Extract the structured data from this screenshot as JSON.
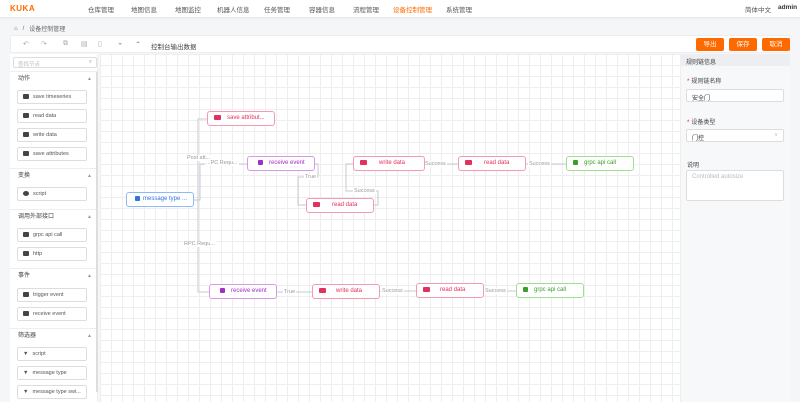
{
  "nav": {
    "logo": "KUKA",
    "items": [
      "仓库管理",
      "地图信息",
      "地图监控",
      "机器人信息",
      "任务管理",
      "容器信息",
      "流程管理",
      "设备控制管理",
      "系统管理"
    ],
    "active_index": 7,
    "language": "简体中文",
    "user": "admin",
    "accent": "#ff6a00"
  },
  "breadcrumb": {
    "home_icon": "home-icon",
    "current": "设备控制管理"
  },
  "toolbar": {
    "icons": [
      "undo-icon",
      "redo-icon",
      "copy-icon",
      "paste-icon",
      "delete-icon",
      "eye-icon",
      "preview-icon"
    ],
    "text": "控制台输出数据",
    "export": "导出",
    "save": "保存",
    "cancel": "取消"
  },
  "sidebar": {
    "search_placeholder": "查找节点",
    "sections": [
      {
        "title": "动作",
        "items": [
          "save timeseries",
          "read data",
          "write data",
          "save attributes"
        ]
      },
      {
        "title": "变换",
        "items": [
          "script"
        ]
      },
      {
        "title": "调用外部接口",
        "items": [
          "grpc api call",
          "http"
        ]
      },
      {
        "title": "事件",
        "items": [
          "trigger event",
          "receive event"
        ]
      },
      {
        "title": "筛选器",
        "items": [
          "script",
          "message type",
          "message type swi..."
        ]
      }
    ]
  },
  "canvas": {
    "nodes": [
      {
        "label": "save attribut...",
        "type": "action"
      },
      {
        "label": "receive event",
        "type": "event"
      },
      {
        "label": "write data",
        "type": "action"
      },
      {
        "label": "read data",
        "type": "action"
      },
      {
        "label": "grpc api call",
        "type": "ext"
      },
      {
        "label": "read data",
        "type": "action"
      },
      {
        "label": "message type ...",
        "type": "filter"
      },
      {
        "label": "receive event",
        "type": "event"
      },
      {
        "label": "write data",
        "type": "action"
      },
      {
        "label": "read data",
        "type": "action"
      },
      {
        "label": "grpc api call",
        "type": "ext"
      }
    ],
    "edge_labels": [
      "Post att...",
      "...PC Requ...",
      "True",
      "Success",
      "Success",
      "Success",
      "RPC Requ...",
      "True",
      "Success",
      "Success"
    ]
  },
  "panel": {
    "title": "规则链信息",
    "name_label": "规则链名称",
    "name_value": "安全门",
    "type_label": "设备类型",
    "type_value": "门控",
    "desc_label": "说明",
    "desc_placeholder": "Controlled autosize"
  }
}
